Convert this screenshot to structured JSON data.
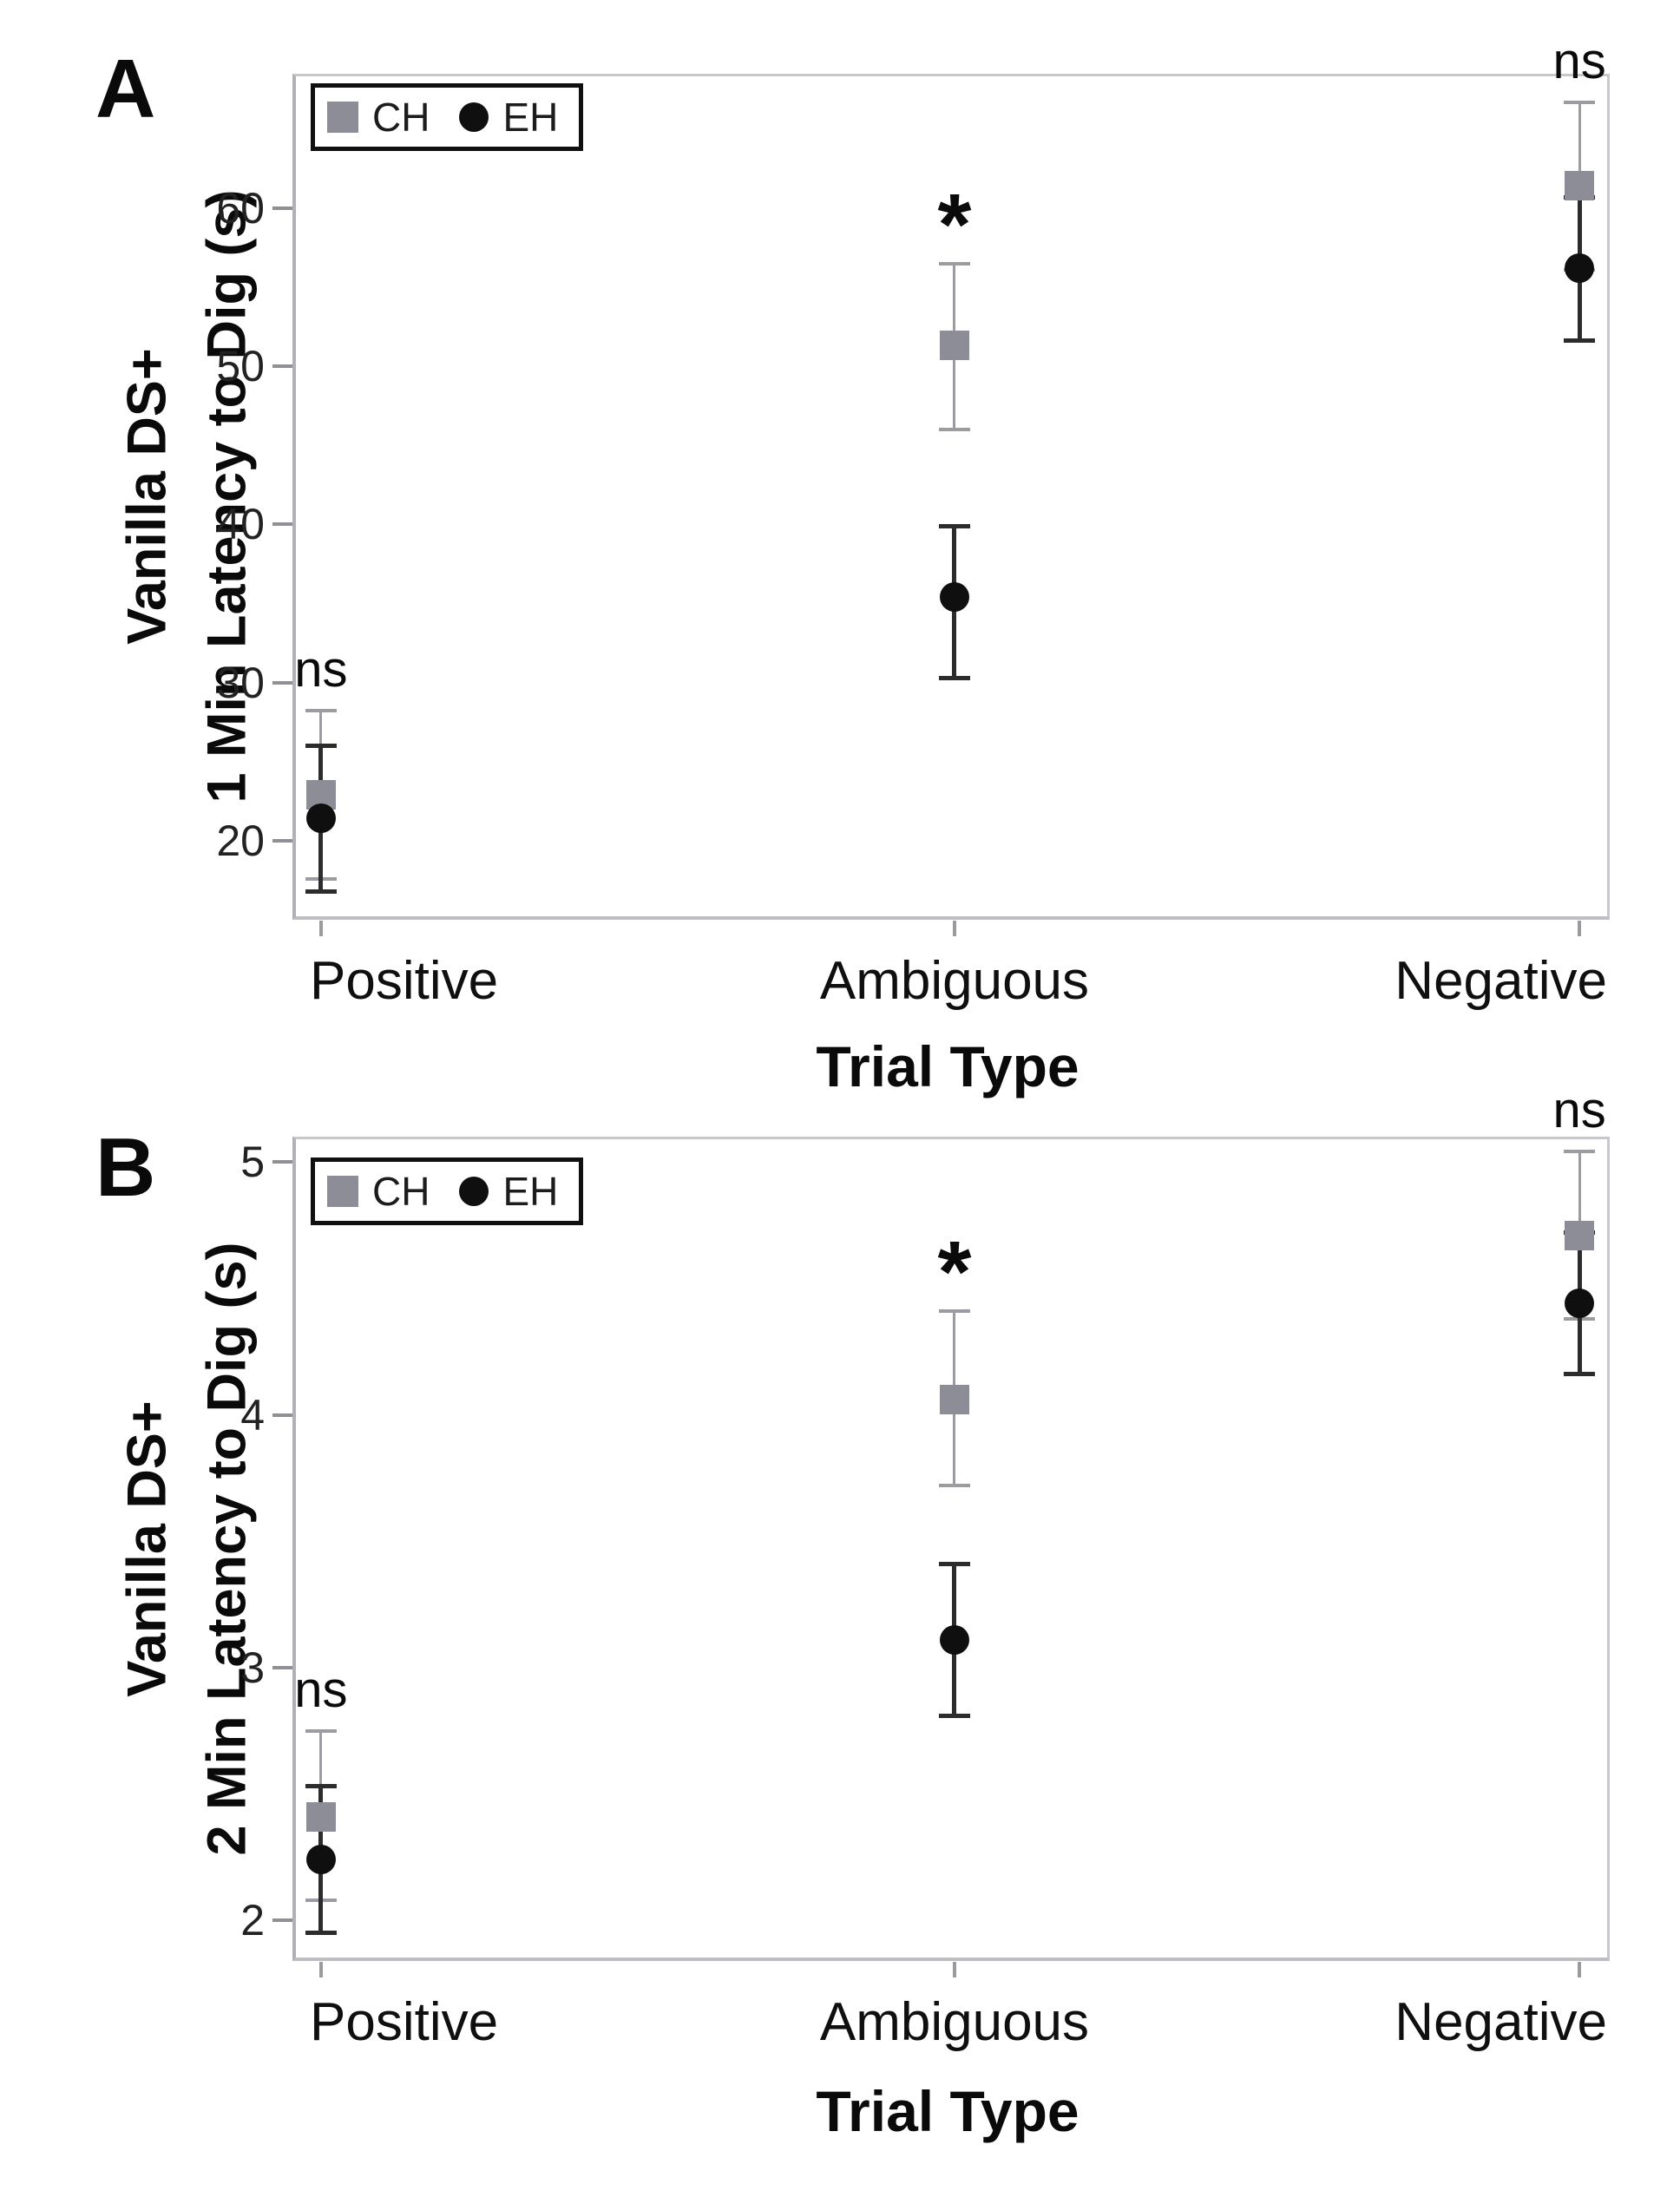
{
  "figure": {
    "background": "#ffffff",
    "text_color": "#0a0a0a",
    "frame_color": "#c7c7cc",
    "tick_color": "#8f8f95"
  },
  "chart_data": [
    {
      "type": "scatter",
      "panel_label": "A",
      "ylabel_line1": "Vanilla DS+",
      "ylabel_line2": "1 Min Latency to Dig (s)",
      "xlabel": "Trial Type",
      "categories": [
        "Positive",
        "Ambiguous",
        "Negative"
      ],
      "yticks": [
        20,
        30,
        40,
        50,
        60
      ],
      "ylim": [
        15.0,
        68.5
      ],
      "grid": false,
      "legend_position": "top-left-inside",
      "legend": [
        {
          "label": "CH",
          "marker": "square",
          "color": "#8d8d97"
        },
        {
          "label": "EH",
          "marker": "circle",
          "color": "#0f0f0f"
        }
      ],
      "series": [
        {
          "name": "CH",
          "marker": "square",
          "marker_color": "#8d8d97",
          "errorbar_color": "#9b9ba1",
          "points": [
            {
              "category": "Positive",
              "mean": 22.9,
              "ci_low": 17.6,
              "ci_high": 28.2
            },
            {
              "category": "Ambiguous",
              "mean": 51.3,
              "ci_low": 46.0,
              "ci_high": 56.5
            },
            {
              "category": "Negative",
              "mean": 61.4,
              "ci_low": 56.1,
              "ci_high": 66.7
            }
          ]
        },
        {
          "name": "EH",
          "marker": "circle",
          "marker_color": "#0f0f0f",
          "errorbar_color": "#2c2c2c",
          "points": [
            {
              "category": "Positive",
              "mean": 21.4,
              "ci_low": 16.8,
              "ci_high": 26.0
            },
            {
              "category": "Ambiguous",
              "mean": 35.4,
              "ci_low": 30.3,
              "ci_high": 39.9
            },
            {
              "category": "Negative",
              "mean": 56.2,
              "ci_low": 51.6,
              "ci_high": 60.7
            }
          ]
        }
      ],
      "significance": [
        {
          "category": "Positive",
          "label": "ns"
        },
        {
          "category": "Ambiguous",
          "label": "*"
        },
        {
          "category": "Negative",
          "label": "ns"
        }
      ]
    },
    {
      "type": "scatter",
      "panel_label": "B",
      "ylabel_line1": "Vanilla DS+",
      "ylabel_line2": "2 Min Latency to Dig (s)",
      "xlabel": "Trial Type",
      "categories": [
        "Positive",
        "Ambiguous",
        "Negative"
      ],
      "yticks": [
        2,
        3,
        4,
        5
      ],
      "ylim": [
        1.84,
        5.1
      ],
      "grid": false,
      "legend_position": "top-left-inside",
      "legend": [
        {
          "label": "CH",
          "marker": "square",
          "color": "#8d8d97"
        },
        {
          "label": "EH",
          "marker": "circle",
          "color": "#0f0f0f"
        }
      ],
      "series": [
        {
          "name": "CH",
          "marker": "square",
          "marker_color": "#8d8d97",
          "errorbar_color": "#9b9ba1",
          "points": [
            {
              "category": "Positive",
              "mean": 2.41,
              "ci_low": 2.08,
              "ci_high": 2.75
            },
            {
              "category": "Ambiguous",
              "mean": 4.06,
              "ci_low": 3.72,
              "ci_high": 4.41
            },
            {
              "category": "Negative",
              "mean": 4.71,
              "ci_low": 4.38,
              "ci_high": 5.04
            }
          ]
        },
        {
          "name": "EH",
          "marker": "circle",
          "marker_color": "#0f0f0f",
          "errorbar_color": "#2c2c2c",
          "points": [
            {
              "category": "Positive",
              "mean": 2.24,
              "ci_low": 1.95,
              "ci_high": 2.53
            },
            {
              "category": "Ambiguous",
              "mean": 3.11,
              "ci_low": 2.81,
              "ci_high": 3.41
            },
            {
              "category": "Negative",
              "mean": 4.44,
              "ci_low": 4.16,
              "ci_high": 4.72
            }
          ]
        }
      ],
      "significance": [
        {
          "category": "Positive",
          "label": "ns"
        },
        {
          "category": "Ambiguous",
          "label": "*"
        },
        {
          "category": "Negative",
          "label": "ns"
        }
      ]
    }
  ]
}
